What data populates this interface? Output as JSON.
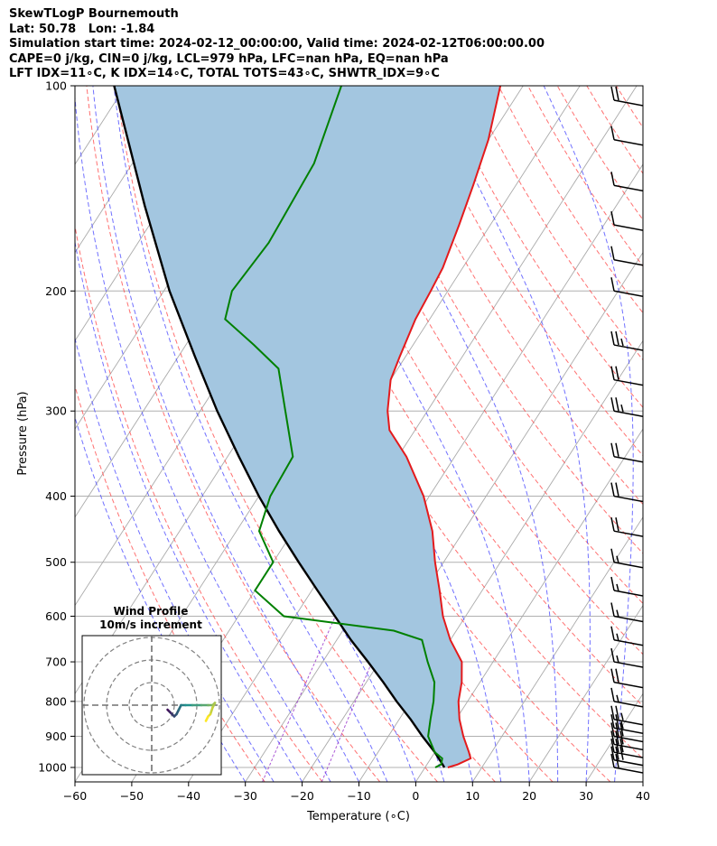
{
  "header": {
    "line1": "SkewTLogP Bournemouth",
    "line2": "Lat: 50.78   Lon: -1.84",
    "line3": "Simulation start time: 2024-02-12_00:00:00, Valid time: 2024-02-12T06:00:00.00",
    "line4": "CAPE=0 j/kg, CIN=0 j/kg, LCL=979 hPa, LFC=nan hPa, EQ=nan hPa",
    "line5": "LFT IDX=11∘C, K IDX=14∘C, TOTAL TOTS=43∘C, SHWTR_IDX=9∘C"
  },
  "hodograph": {
    "title": "Wind Profile",
    "subtitle": "10m/s increment"
  },
  "chart_data": {
    "type": "line",
    "subtype": "skew-T log-P diagram",
    "xlabel": "Temperature (∘C)",
    "ylabel": "Pressure (hPa)",
    "xlim": [
      -60,
      40
    ],
    "ylim": [
      1050,
      100
    ],
    "yscale": "log",
    "grid": true,
    "x_ticks": [
      -60,
      -50,
      -40,
      -30,
      -20,
      -10,
      0,
      10,
      20,
      30,
      40
    ],
    "x_tick_labels": [
      "−60",
      "−50",
      "−40",
      "−30",
      "−20",
      "−10",
      "0",
      "10",
      "20",
      "30",
      "40"
    ],
    "y_ticks": [
      1000,
      900,
      800,
      700,
      600,
      500,
      400,
      300,
      200,
      100
    ],
    "series": [
      {
        "role": "temperature",
        "color": "#e41a1c",
        "points": [
          [
            1000,
            4.0
          ],
          [
            990,
            5.4
          ],
          [
            970,
            7.0
          ],
          [
            950,
            6.0
          ],
          [
            900,
            3.2
          ],
          [
            850,
            0.6
          ],
          [
            800,
            -1.6
          ],
          [
            750,
            -3.2
          ],
          [
            700,
            -5.5
          ],
          [
            650,
            -10.0
          ],
          [
            600,
            -14.0
          ],
          [
            550,
            -17.5
          ],
          [
            500,
            -21.5
          ],
          [
            450,
            -25.5
          ],
          [
            400,
            -31.0
          ],
          [
            350,
            -38.5
          ],
          [
            320,
            -44.5
          ],
          [
            300,
            -47.0
          ],
          [
            270,
            -50.0
          ],
          [
            250,
            -51.0
          ],
          [
            220,
            -52.5
          ],
          [
            200,
            -53.0
          ],
          [
            185,
            -53.5
          ],
          [
            160,
            -55.5
          ],
          [
            140,
            -57.5
          ],
          [
            120,
            -60.0
          ],
          [
            100,
            -64.0
          ]
        ]
      },
      {
        "role": "dewpoint",
        "color": "#008000",
        "points": [
          [
            1000,
            1.8
          ],
          [
            990,
            2.5
          ],
          [
            970,
            2.0
          ],
          [
            950,
            0.0
          ],
          [
            900,
            -3.0
          ],
          [
            850,
            -4.5
          ],
          [
            800,
            -6.0
          ],
          [
            750,
            -8.0
          ],
          [
            700,
            -11.5
          ],
          [
            650,
            -15.0
          ],
          [
            630,
            -21.0
          ],
          [
            600,
            -42.0
          ],
          [
            550,
            -50.0
          ],
          [
            500,
            -50.0
          ],
          [
            450,
            -56.0
          ],
          [
            400,
            -58.0
          ],
          [
            350,
            -58.5
          ],
          [
            300,
            -65.0
          ],
          [
            260,
            -71.0
          ],
          [
            240,
            -78.0
          ],
          [
            220,
            -86.0
          ],
          [
            200,
            -88.0
          ],
          [
            170,
            -87.0
          ],
          [
            130,
            -88.0
          ],
          [
            100,
            -92.0
          ]
        ]
      },
      {
        "role": "parcel",
        "color": "#000000",
        "points": [
          [
            1000,
            3.4
          ],
          [
            979,
            2.0
          ],
          [
            950,
            0.0
          ],
          [
            900,
            -4.0
          ],
          [
            850,
            -8.0
          ],
          [
            800,
            -12.5
          ],
          [
            750,
            -17.0
          ],
          [
            700,
            -22.0
          ],
          [
            650,
            -27.5
          ],
          [
            600,
            -33.0
          ],
          [
            550,
            -39.0
          ],
          [
            500,
            -45.5
          ],
          [
            450,
            -52.5
          ],
          [
            400,
            -60.0
          ],
          [
            350,
            -68.0
          ],
          [
            300,
            -77.0
          ],
          [
            250,
            -87.0
          ],
          [
            200,
            -99.0
          ],
          [
            150,
            -113.0
          ],
          [
            100,
            -132.0
          ]
        ]
      }
    ],
    "shaded_area": {
      "between": [
        "parcel",
        "temperature"
      ],
      "color": "#a3c6e0"
    },
    "reference_lines": {
      "isotherms": {
        "step": 10,
        "color": "#aaaaaa"
      },
      "dry_adiabats": {
        "color": "#ff4d4d",
        "style": "dashed"
      },
      "moist_adiabats": {
        "color": "#4d4dff",
        "style": "dashed"
      },
      "mixing_ratio": {
        "color": "#9933cc",
        "style": "dashed"
      }
    },
    "wind_barbs": [
      {
        "p": 1000,
        "speed_kt": 20
      },
      {
        "p": 975,
        "speed_kt": 30
      },
      {
        "p": 950,
        "speed_kt": 30
      },
      {
        "p": 925,
        "speed_kt": 30
      },
      {
        "p": 900,
        "speed_kt": 30
      },
      {
        "p": 875,
        "speed_kt": 25
      },
      {
        "p": 850,
        "speed_kt": 25
      },
      {
        "p": 800,
        "speed_kt": 15
      },
      {
        "p": 750,
        "speed_kt": 20
      },
      {
        "p": 700,
        "speed_kt": 15
      },
      {
        "p": 650,
        "speed_kt": 15
      },
      {
        "p": 600,
        "speed_kt": 15
      },
      {
        "p": 550,
        "speed_kt": 15
      },
      {
        "p": 500,
        "speed_kt": 15
      },
      {
        "p": 450,
        "speed_kt": 20
      },
      {
        "p": 400,
        "speed_kt": 20
      },
      {
        "p": 350,
        "speed_kt": 20
      },
      {
        "p": 300,
        "speed_kt": 25
      },
      {
        "p": 270,
        "speed_kt": 20
      },
      {
        "p": 240,
        "speed_kt": 25
      },
      {
        "p": 200,
        "speed_kt": 10
      },
      {
        "p": 180,
        "speed_kt": 10
      },
      {
        "p": 160,
        "speed_kt": 10
      },
      {
        "p": 140,
        "speed_kt": 10
      },
      {
        "p": 120,
        "speed_kt": 10
      },
      {
        "p": 105,
        "speed_kt": 20
      }
    ],
    "hodograph_data": {
      "rings_ms": [
        10,
        20,
        30
      ],
      "path_color_low": "#440154",
      "path_color_high": "#fde725",
      "points_ms": [
        [
          -9,
          -2
        ],
        [
          -8,
          -3
        ],
        [
          -7,
          -4
        ],
        [
          -6,
          -5
        ],
        [
          -5,
          -4
        ],
        [
          -4,
          -2
        ],
        [
          -3,
          0
        ],
        [
          -1,
          0
        ],
        [
          2,
          0
        ],
        [
          6,
          0
        ],
        [
          9,
          0
        ],
        [
          11,
          0
        ],
        [
          12,
          1
        ],
        [
          11,
          -1
        ],
        [
          10,
          -4
        ],
        [
          9,
          -5
        ],
        [
          8,
          -7
        ]
      ]
    }
  }
}
